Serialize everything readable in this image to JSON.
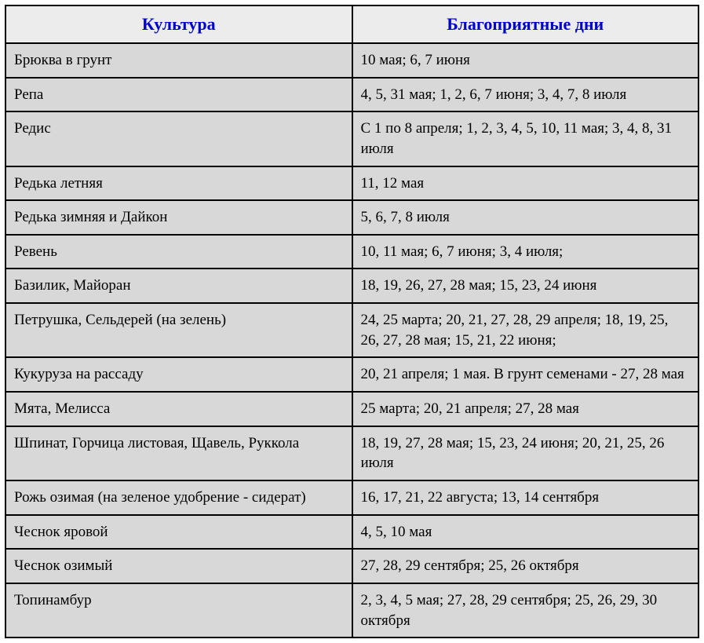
{
  "table": {
    "type": "table",
    "columns": [
      "Культура",
      "Благоприятные дни"
    ],
    "header_color": "#0000cc",
    "header_bg": "#ececec",
    "cell_bg": "#d8d8d8",
    "border_color": "#000000",
    "header_fontsize": 22,
    "cell_fontsize": 19,
    "rows": [
      {
        "culture": "Брюква в грунт",
        "days": "10 мая; 6, 7 июня"
      },
      {
        "culture": "Репа",
        "days": "4, 5, 31 мая; 1, 2, 6, 7 июня; 3, 4, 7, 8 июля"
      },
      {
        "culture": "Редис",
        "days": "С 1 по 8 апреля; 1, 2, 3, 4, 5, 10, 11 мая; 3, 4, 8, 31 июля"
      },
      {
        "culture": "Редька летняя",
        "days": "11, 12 мая"
      },
      {
        "culture": "Редька зимняя и Дайкон",
        "days": "5, 6, 7, 8 июля"
      },
      {
        "culture": "Ревень",
        "days": "10, 11 мая; 6, 7 июня; 3, 4 июля;"
      },
      {
        "culture": "Базилик, Майоран",
        "days": "18, 19, 26, 27, 28 мая; 15, 23, 24 июня"
      },
      {
        "culture": "Петрушка, Сельдерей (на зелень)",
        "days": "24, 25 марта; 20, 21, 27, 28, 29 апреля; 18, 19, 25, 26, 27, 28 мая; 15, 21, 22 июня;"
      },
      {
        "culture": "Кукуруза на рассаду",
        "days": "20, 21 апреля; 1 мая. В грунт семенами - 27, 28 мая"
      },
      {
        "culture": "Мята, Мелисса",
        "days": "25 марта; 20, 21 апреля;  27, 28 мая"
      },
      {
        "culture": "Шпинат, Горчица листовая, Щавель, Руккола",
        "days": "18, 19, 27, 28 мая; 15, 23, 24 июня; 20, 21, 25, 26 июля"
      },
      {
        "culture": "Рожь озимая (на зеленое удобрение - сидерат)",
        "days": "16, 17, 21, 22 августа; 13, 14 сентября"
      },
      {
        "culture": "Чеснок яровой",
        "days": "4, 5, 10 мая"
      },
      {
        "culture": "Чеснок озимый",
        "days": "27, 28, 29 сентября; 25, 26 октября"
      },
      {
        "culture": "Топинамбур",
        "days": "2, 3, 4, 5 мая; 27, 28, 29 сентября; 25, 26, 29, 30 октября"
      }
    ]
  }
}
